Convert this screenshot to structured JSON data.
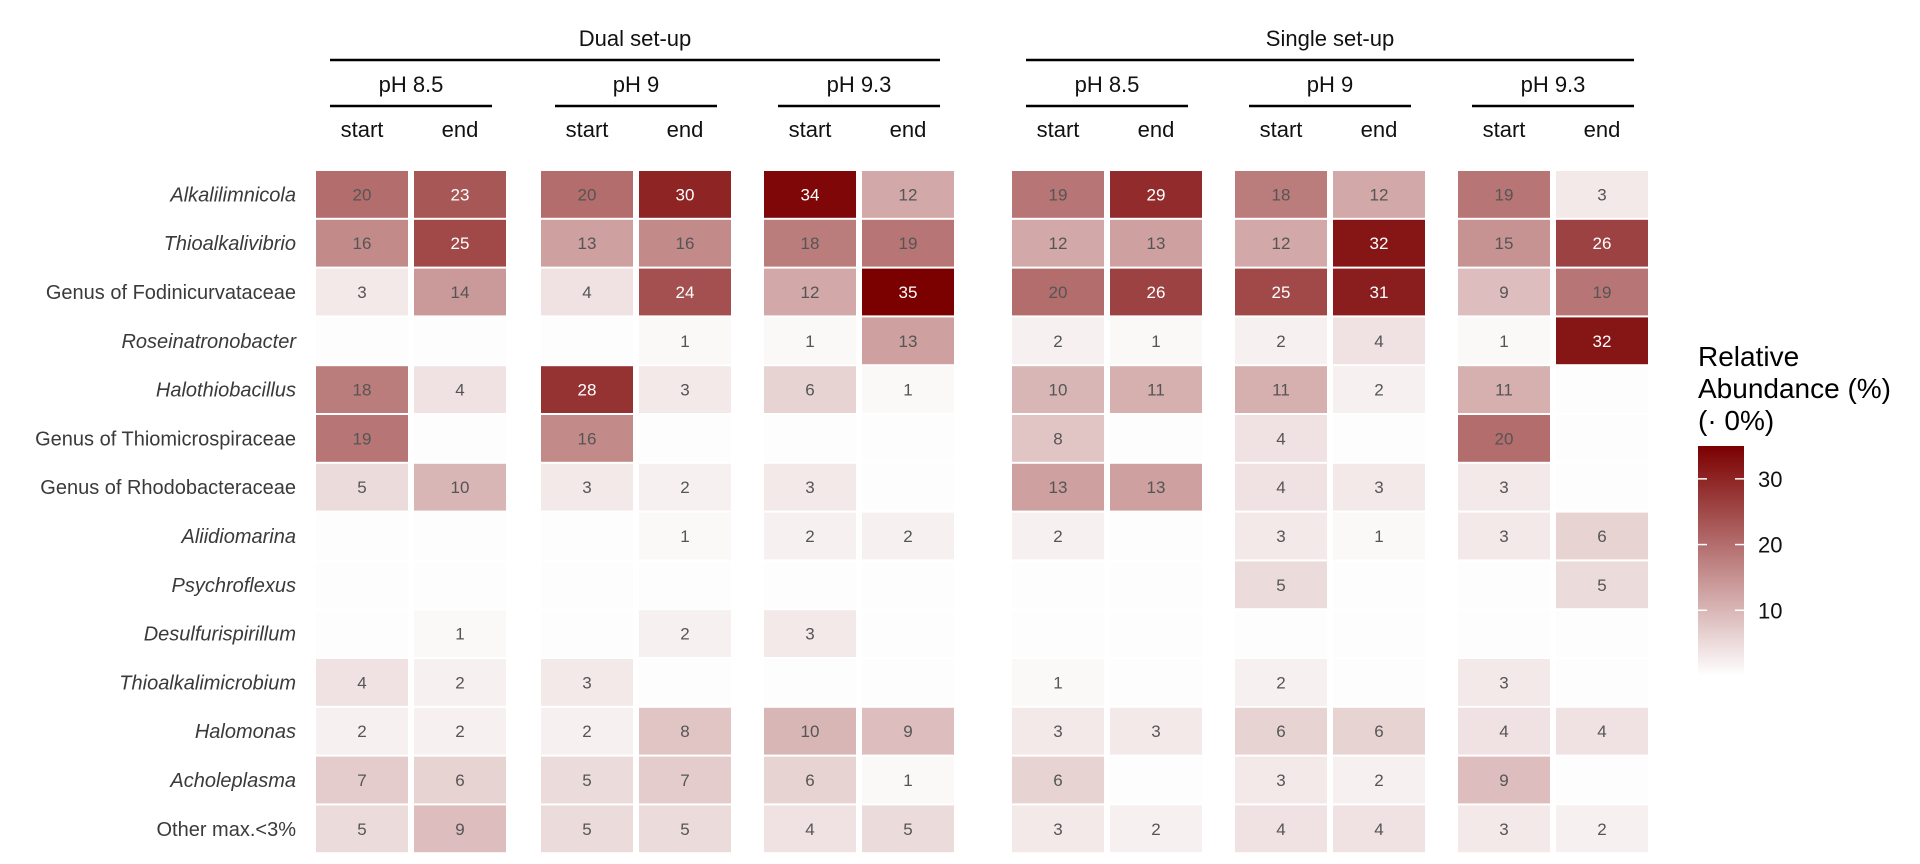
{
  "chart_data": {
    "type": "heatmap",
    "setups": [
      {
        "label": "Dual set-up",
        "ph": [
          "pH 8.5",
          "pH 9",
          "pH 9.3"
        ]
      },
      {
        "label": "Single set-up",
        "ph": [
          "pH 8.5",
          "pH 9",
          "pH 9.3"
        ]
      }
    ],
    "phases": [
      "start",
      "end"
    ],
    "rows": [
      {
        "label": "Alkalilimnicola",
        "italic": true,
        "values": [
          20,
          23,
          20,
          30,
          34,
          12,
          19,
          29,
          18,
          12,
          19,
          3
        ]
      },
      {
        "label": "Thioalkalivibrio",
        "italic": true,
        "values": [
          16,
          25,
          13,
          16,
          18,
          19,
          12,
          13,
          12,
          32,
          15,
          26
        ]
      },
      {
        "label": "Genus of Fodinicurvataceae",
        "italic": false,
        "values": [
          3,
          14,
          4,
          24,
          12,
          35,
          20,
          26,
          25,
          31,
          9,
          19
        ]
      },
      {
        "label": "Roseinatronobacter",
        "italic": true,
        "values": [
          null,
          null,
          null,
          1,
          1,
          13,
          2,
          1,
          2,
          4,
          1,
          32
        ]
      },
      {
        "label": "Halothiobacillus",
        "italic": true,
        "values": [
          18,
          4,
          28,
          3,
          6,
          1,
          10,
          11,
          11,
          2,
          11,
          null
        ]
      },
      {
        "label": "Genus of Thiomicrospiraceae",
        "italic": false,
        "values": [
          19,
          null,
          16,
          null,
          null,
          null,
          8,
          null,
          4,
          null,
          20,
          null
        ]
      },
      {
        "label": "Genus of Rhodobacteraceae",
        "italic": false,
        "values": [
          5,
          10,
          3,
          2,
          3,
          null,
          13,
          13,
          4,
          3,
          3,
          null
        ]
      },
      {
        "label": "Aliidiomarina",
        "italic": true,
        "values": [
          null,
          null,
          null,
          1,
          2,
          2,
          2,
          null,
          3,
          1,
          3,
          6
        ]
      },
      {
        "label": "Psychroflexus",
        "italic": true,
        "values": [
          null,
          null,
          null,
          null,
          null,
          null,
          null,
          null,
          5,
          null,
          null,
          5
        ]
      },
      {
        "label": "Desulfurispirillum",
        "italic": true,
        "values": [
          null,
          1,
          null,
          2,
          3,
          null,
          null,
          null,
          null,
          null,
          null,
          null
        ]
      },
      {
        "label": "Thioalkalimicrobium",
        "italic": true,
        "values": [
          4,
          2,
          3,
          null,
          null,
          null,
          1,
          null,
          2,
          null,
          3,
          null
        ]
      },
      {
        "label": "Halomonas",
        "italic": true,
        "values": [
          2,
          2,
          2,
          8,
          10,
          9,
          3,
          3,
          6,
          6,
          4,
          4
        ]
      },
      {
        "label": "Acholeplasma",
        "italic": true,
        "values": [
          7,
          6,
          5,
          7,
          6,
          1,
          6,
          null,
          3,
          2,
          9,
          null
        ]
      },
      {
        "label": "Other max.<3%",
        "italic": false,
        "values": [
          5,
          9,
          5,
          5,
          4,
          5,
          3,
          2,
          4,
          4,
          3,
          2
        ]
      }
    ],
    "legend": {
      "title_lines": [
        "Relative",
        "Abundance (%)",
        "(· 0%)"
      ],
      "ticks": [
        10,
        20,
        30
      ],
      "range": [
        0,
        35
      ],
      "colors": [
        "#ffffff",
        "#7b0000"
      ]
    }
  }
}
